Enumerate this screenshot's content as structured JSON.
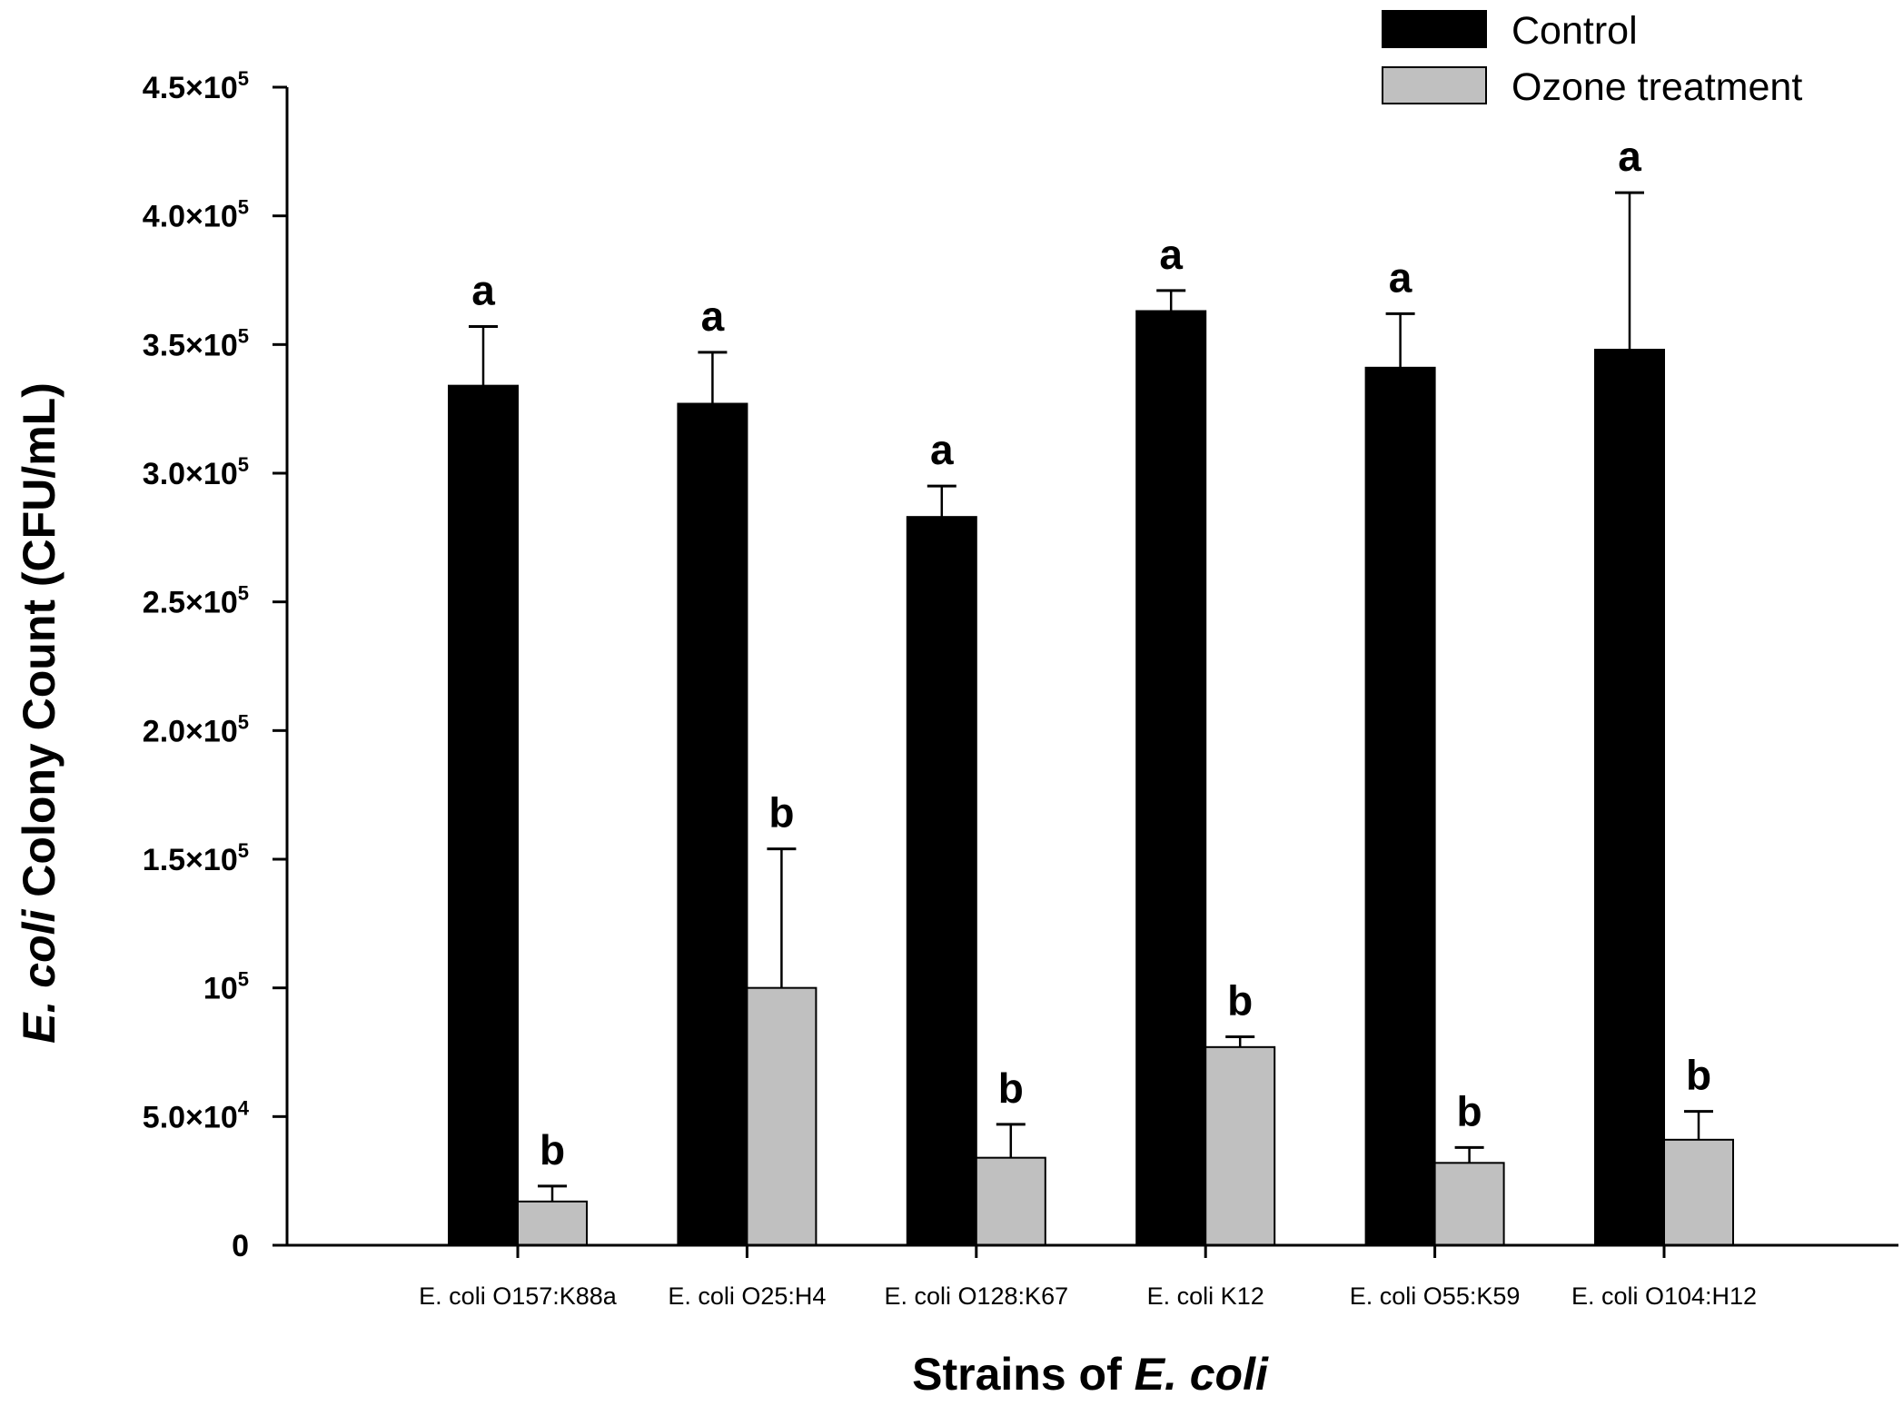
{
  "chart_data": {
    "type": "bar",
    "xlabel": "Strains of E. coli",
    "xlabel_parts": [
      "Strains of ",
      "E. coli"
    ],
    "ylabel": "E. coli Colony Count (CFU/mL)",
    "ylabel_parts": [
      "E. coli",
      " Colony Count (CFU/mL)"
    ],
    "ylim": [
      0,
      450000
    ],
    "yticks": [
      {
        "value": 0,
        "base": "0",
        "exp": ""
      },
      {
        "value": 50000,
        "base": "5.0×10",
        "exp": "4"
      },
      {
        "value": 100000,
        "base": "10",
        "exp": "5"
      },
      {
        "value": 150000,
        "base": "1.5×10",
        "exp": "5"
      },
      {
        "value": 200000,
        "base": "2.0×10",
        "exp": "5"
      },
      {
        "value": 250000,
        "base": "2.5×10",
        "exp": "5"
      },
      {
        "value": 300000,
        "base": "3.0×10",
        "exp": "5"
      },
      {
        "value": 350000,
        "base": "3.5×10",
        "exp": "5"
      },
      {
        "value": 400000,
        "base": "4.0×10",
        "exp": "5"
      },
      {
        "value": 450000,
        "base": "4.5×10",
        "exp": "5"
      }
    ],
    "categories": [
      "E. coli O157:K88a",
      "E. coli O25:H4",
      "E. coli O128:K67",
      "E. coli K12",
      "E. coli O55:K59",
      "E. coli O104:H12"
    ],
    "series": [
      {
        "name": "Control",
        "color": "#000000",
        "values": [
          334000,
          327000,
          283000,
          363000,
          341000,
          348000
        ],
        "errors": [
          23000,
          20000,
          12000,
          8000,
          21000,
          61000
        ],
        "significance": [
          "a",
          "a",
          "a",
          "a",
          "a",
          "a"
        ]
      },
      {
        "name": "Ozone treatment",
        "color": "#c0c0c0",
        "values": [
          17000,
          100000,
          34000,
          77000,
          32000,
          41000
        ],
        "errors": [
          6000,
          54000,
          13000,
          4000,
          6000,
          11000
        ],
        "significance": [
          "b",
          "b",
          "b",
          "b",
          "b",
          "b"
        ]
      }
    ],
    "legend": {
      "position": "top-right"
    }
  }
}
